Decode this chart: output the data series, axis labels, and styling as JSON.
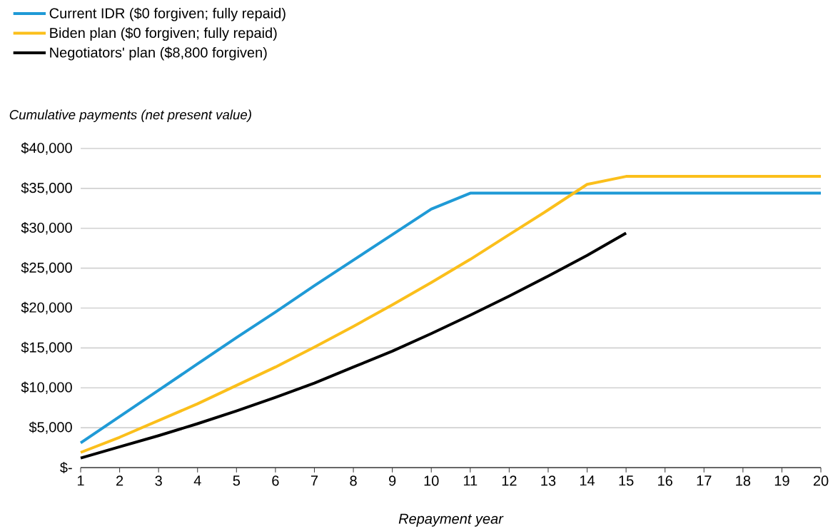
{
  "chart_data": {
    "type": "line",
    "xlabel": "Repayment year",
    "ylabel": "Cumulative payments (net present value)",
    "x": [
      1,
      2,
      3,
      4,
      5,
      6,
      7,
      8,
      9,
      10,
      11,
      12,
      13,
      14,
      15,
      16,
      17,
      18,
      19,
      20
    ],
    "series": [
      {
        "name": "Current IDR ($0 forgiven; fully repaid)",
        "color": "#1f9ad6",
        "values": [
          3100,
          6400,
          9700,
          13000,
          16300,
          19500,
          22800,
          26000,
          29200,
          32400,
          34400,
          34400,
          34400,
          34400,
          34400,
          34400,
          34400,
          34400,
          34400,
          34400
        ]
      },
      {
        "name": "Biden plan ($0 forgiven; fully repaid)",
        "color": "#fbbf1b",
        "values": [
          1900,
          3800,
          5900,
          8000,
          10300,
          12600,
          15100,
          17700,
          20400,
          23200,
          26100,
          29200,
          32300,
          35500,
          36500,
          36500,
          36500,
          36500,
          36500,
          36500
        ]
      },
      {
        "name": "Negotiators' plan ($8,800 forgiven)",
        "color": "#000000",
        "values": [
          1200,
          2600,
          4000,
          5500,
          7100,
          8800,
          10600,
          12600,
          14600,
          16800,
          19100,
          21500,
          24000,
          26600,
          29400,
          null,
          null,
          null,
          null,
          null
        ]
      }
    ],
    "xlim": [
      1,
      20
    ],
    "xticks": [
      1,
      2,
      3,
      4,
      5,
      6,
      7,
      8,
      9,
      10,
      11,
      12,
      13,
      14,
      15,
      16,
      17,
      18,
      19,
      20
    ],
    "ylim": [
      0,
      40000
    ],
    "yticks": [
      {
        "value": 0,
        "label": "$-"
      },
      {
        "value": 5000,
        "label": "$5,000"
      },
      {
        "value": 10000,
        "label": "$10,000"
      },
      {
        "value": 15000,
        "label": "$15,000"
      },
      {
        "value": 20000,
        "label": "$20,000"
      },
      {
        "value": 25000,
        "label": "$25,000"
      },
      {
        "value": 30000,
        "label": "$30,000"
      },
      {
        "value": 35000,
        "label": "$35,000"
      },
      {
        "value": 40000,
        "label": "$40,000"
      }
    ],
    "grid": "y",
    "legend": "top left",
    "marker": "none",
    "line_style": "solid"
  }
}
